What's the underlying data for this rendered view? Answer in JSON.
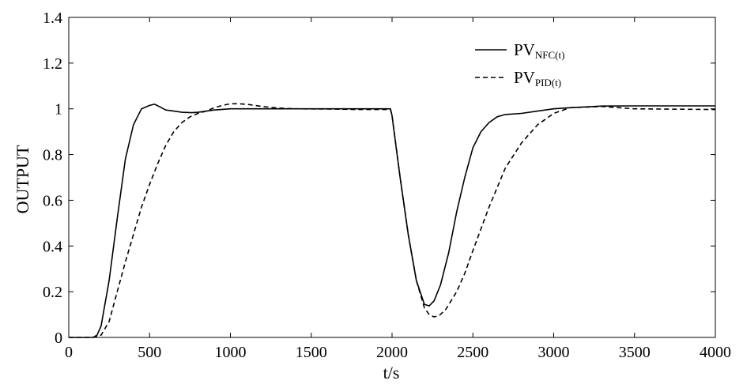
{
  "chart_data": {
    "type": "line",
    "xlabel": "t/s",
    "ylabel": "OUTPUT",
    "xlim": [
      0,
      4000
    ],
    "ylim": [
      0,
      1.4
    ],
    "xticks": [
      0,
      500,
      1000,
      1500,
      2000,
      2500,
      3000,
      3500,
      4000
    ],
    "xtick_labels": [
      "0",
      "500",
      "1000",
      "1500",
      "2000",
      "2500",
      "3000",
      "3500",
      "4000"
    ],
    "yticks": [
      0,
      0.2,
      0.4,
      0.6,
      0.8,
      1,
      1.2,
      1.4
    ],
    "ytick_labels": [
      "0",
      "0.2",
      "0.4",
      "0.6",
      "0.8",
      "1",
      "1.2",
      "1.4"
    ],
    "grid": false,
    "legend_position": "top-right",
    "series": [
      {
        "name": "PV",
        "name_subscript": "NFC(t)",
        "style": "solid",
        "color": "#000000",
        "x": [
          0,
          150,
          175,
          200,
          250,
          300,
          350,
          400,
          450,
          500,
          530,
          560,
          600,
          650,
          700,
          760,
          800,
          900,
          1000,
          1200,
          1500,
          1800,
          1990,
          2000,
          2020,
          2050,
          2100,
          2150,
          2200,
          2230,
          2260,
          2300,
          2350,
          2400,
          2450,
          2500,
          2550,
          2600,
          2650,
          2700,
          2800,
          2900,
          3000,
          3100,
          3300,
          3500,
          4000
        ],
        "y": [
          0,
          0,
          0.01,
          0.05,
          0.25,
          0.52,
          0.78,
          0.93,
          1.0,
          1.015,
          1.02,
          1.01,
          0.995,
          0.99,
          0.985,
          0.983,
          0.985,
          0.995,
          1.0,
          1.0,
          1.0,
          1.0,
          1.0,
          0.97,
          0.86,
          0.7,
          0.45,
          0.25,
          0.145,
          0.138,
          0.16,
          0.23,
          0.37,
          0.55,
          0.7,
          0.83,
          0.9,
          0.94,
          0.965,
          0.975,
          0.98,
          0.99,
          1.0,
          1.005,
          1.012,
          1.013,
          1.013
        ]
      },
      {
        "name": "PV",
        "name_subscript": "PID(t)",
        "style": "dashed",
        "color": "#000000",
        "x": [
          0,
          150,
          200,
          250,
          300,
          350,
          400,
          450,
          500,
          550,
          600,
          650,
          700,
          750,
          800,
          850,
          900,
          950,
          1000,
          1050,
          1100,
          1200,
          1300,
          1400,
          1600,
          1800,
          1990,
          2000,
          2050,
          2100,
          2150,
          2200,
          2230,
          2260,
          2290,
          2330,
          2400,
          2450,
          2500,
          2600,
          2700,
          2800,
          2900,
          3000,
          3100,
          3300,
          3500,
          4000
        ],
        "y": [
          0,
          0,
          0.01,
          0.07,
          0.2,
          0.33,
          0.45,
          0.57,
          0.67,
          0.76,
          0.84,
          0.9,
          0.94,
          0.965,
          0.98,
          0.99,
          1.005,
          1.015,
          1.022,
          1.022,
          1.02,
          1.01,
          1.003,
          1.0,
          0.999,
          0.997,
          0.997,
          0.97,
          0.7,
          0.45,
          0.25,
          0.13,
          0.1,
          0.09,
          0.095,
          0.12,
          0.2,
          0.28,
          0.38,
          0.57,
          0.74,
          0.85,
          0.93,
          0.98,
          1.005,
          1.01,
          1.0,
          0.997
        ]
      }
    ]
  }
}
